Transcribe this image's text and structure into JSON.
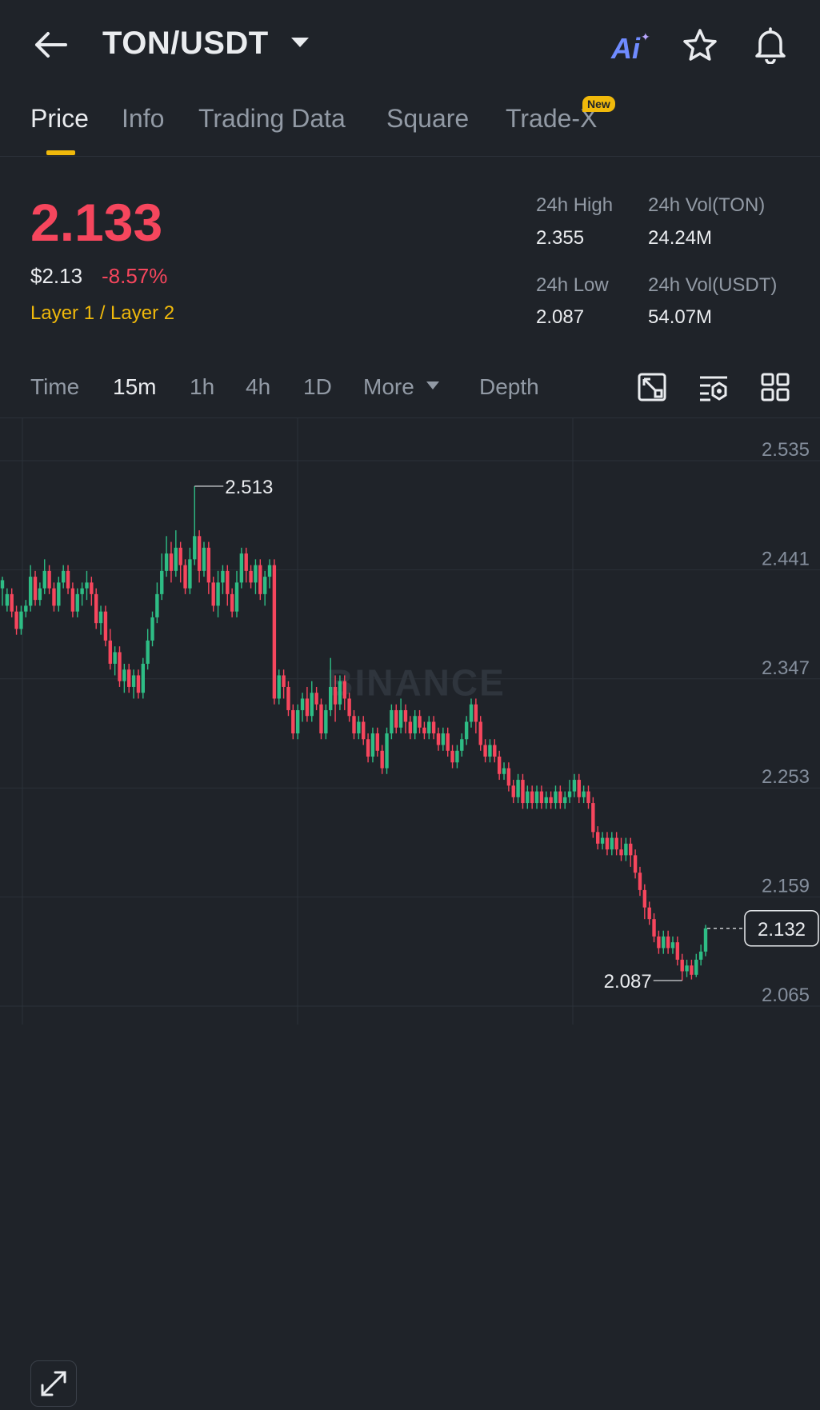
{
  "header": {
    "pair": "TON/USDT",
    "ai_label": "Ai",
    "icons": [
      "back-arrow-icon",
      "caret-down-icon",
      "star-icon",
      "bell-icon"
    ]
  },
  "tabs": [
    {
      "label": "Price",
      "active": true
    },
    {
      "label": "Info",
      "active": false
    },
    {
      "label": "Trading Data",
      "active": false
    },
    {
      "label": "Square",
      "active": false
    },
    {
      "label": "Trade-X",
      "active": false,
      "badge": "New"
    }
  ],
  "ticker": {
    "last_price": "2.133",
    "usd_price": "$2.13",
    "change_pct": "-8.57%",
    "category": "Layer 1 / Layer 2",
    "high_label": "24h High",
    "high": "2.355",
    "low_label": "24h Low",
    "low": "2.087",
    "vol_ton_label": "24h Vol(TON)",
    "vol_ton": "24.24M",
    "vol_usdt_label": "24h Vol(USDT)",
    "vol_usdt": "54.07M"
  },
  "timeframes": {
    "items": [
      "Time",
      "15m",
      "1h",
      "4h",
      "1D",
      "More",
      "Depth"
    ],
    "active": "15m"
  },
  "colors": {
    "up": "#2ebd85",
    "down": "#f6465d",
    "accent": "#f0b90b",
    "background": "#1f2329"
  },
  "watermark": "BINANCE",
  "chart_data": {
    "type": "candlestick",
    "y_ticks": [
      2.535,
      2.441,
      2.347,
      2.253,
      2.159,
      2.065
    ],
    "ylim": [
      2.065,
      2.535
    ],
    "max_label": "2.513",
    "min_label": "2.087",
    "last_label": "2.132",
    "last_value": 2.132,
    "candles": [
      [
        2.425,
        2.432,
        2.41,
        2.435
      ],
      [
        2.41,
        2.42,
        2.405,
        2.425
      ],
      [
        2.42,
        2.405,
        2.4,
        2.425
      ],
      [
        2.405,
        2.39,
        2.385,
        2.41
      ],
      [
        2.39,
        2.405,
        2.385,
        2.41
      ],
      [
        2.405,
        2.41,
        2.4,
        2.415
      ],
      [
        2.41,
        2.435,
        2.405,
        2.445
      ],
      [
        2.435,
        2.415,
        2.41,
        2.44
      ],
      [
        2.415,
        2.425,
        2.41,
        2.43
      ],
      [
        2.425,
        2.44,
        2.42,
        2.45
      ],
      [
        2.44,
        2.425,
        2.42,
        2.445
      ],
      [
        2.425,
        2.41,
        2.405,
        2.43
      ],
      [
        2.41,
        2.43,
        2.405,
        2.435
      ],
      [
        2.43,
        2.44,
        2.425,
        2.445
      ],
      [
        2.44,
        2.425,
        2.42,
        2.445
      ],
      [
        2.425,
        2.405,
        2.4,
        2.43
      ],
      [
        2.405,
        2.42,
        2.4,
        2.425
      ],
      [
        2.42,
        2.425,
        2.41,
        2.43
      ],
      [
        2.425,
        2.43,
        2.415,
        2.44
      ],
      [
        2.43,
        2.42,
        2.41,
        2.435
      ],
      [
        2.42,
        2.395,
        2.39,
        2.425
      ],
      [
        2.395,
        2.405,
        2.385,
        2.41
      ],
      [
        2.405,
        2.38,
        2.375,
        2.41
      ],
      [
        2.38,
        2.36,
        2.355,
        2.39
      ],
      [
        2.36,
        2.37,
        2.35,
        2.375
      ],
      [
        2.37,
        2.345,
        2.34,
        2.375
      ],
      [
        2.345,
        2.355,
        2.335,
        2.36
      ],
      [
        2.355,
        2.34,
        2.335,
        2.36
      ],
      [
        2.34,
        2.35,
        2.33,
        2.355
      ],
      [
        2.35,
        2.335,
        2.33,
        2.355
      ],
      [
        2.335,
        2.36,
        2.33,
        2.365
      ],
      [
        2.36,
        2.38,
        2.355,
        2.39
      ],
      [
        2.38,
        2.4,
        2.375,
        2.405
      ],
      [
        2.4,
        2.42,
        2.395,
        2.43
      ],
      [
        2.42,
        2.44,
        2.415,
        2.455
      ],
      [
        2.44,
        2.455,
        2.435,
        2.47
      ],
      [
        2.455,
        2.44,
        2.43,
        2.465
      ],
      [
        2.44,
        2.46,
        2.435,
        2.475
      ],
      [
        2.46,
        2.445,
        2.43,
        2.465
      ],
      [
        2.445,
        2.425,
        2.42,
        2.45
      ],
      [
        2.425,
        2.45,
        2.42,
        2.46
      ],
      [
        2.45,
        2.47,
        2.445,
        2.513
      ],
      [
        2.47,
        2.44,
        2.43,
        2.475
      ],
      [
        2.44,
        2.46,
        2.435,
        2.465
      ],
      [
        2.46,
        2.43,
        2.42,
        2.465
      ],
      [
        2.43,
        2.41,
        2.405,
        2.435
      ],
      [
        2.41,
        2.43,
        2.4,
        2.44
      ],
      [
        2.43,
        2.44,
        2.42,
        2.445
      ],
      [
        2.44,
        2.42,
        2.41,
        2.445
      ],
      [
        2.42,
        2.405,
        2.4,
        2.425
      ],
      [
        2.405,
        2.43,
        2.4,
        2.44
      ],
      [
        2.43,
        2.455,
        2.425,
        2.46
      ],
      [
        2.455,
        2.44,
        2.43,
        2.46
      ],
      [
        2.44,
        2.43,
        2.425,
        2.445
      ],
      [
        2.43,
        2.445,
        2.42,
        2.45
      ],
      [
        2.445,
        2.42,
        2.415,
        2.45
      ],
      [
        2.42,
        2.435,
        2.41,
        2.44
      ],
      [
        2.435,
        2.445,
        2.425,
        2.45
      ],
      [
        2.445,
        2.33,
        2.325,
        2.45
      ],
      [
        2.33,
        2.35,
        2.325,
        2.355
      ],
      [
        2.35,
        2.34,
        2.33,
        2.355
      ],
      [
        2.34,
        2.32,
        2.315,
        2.345
      ],
      [
        2.32,
        2.3,
        2.295,
        2.325
      ],
      [
        2.3,
        2.32,
        2.295,
        2.325
      ],
      [
        2.32,
        2.33,
        2.31,
        2.335
      ],
      [
        2.33,
        2.315,
        2.31,
        2.34
      ],
      [
        2.315,
        2.335,
        2.31,
        2.345
      ],
      [
        2.335,
        2.325,
        2.32,
        2.34
      ],
      [
        2.325,
        2.3,
        2.295,
        2.33
      ],
      [
        2.3,
        2.32,
        2.295,
        2.325
      ],
      [
        2.32,
        2.34,
        2.315,
        2.365
      ],
      [
        2.34,
        2.325,
        2.31,
        2.35
      ],
      [
        2.325,
        2.345,
        2.32,
        2.35
      ],
      [
        2.345,
        2.33,
        2.32,
        2.35
      ],
      [
        2.33,
        2.315,
        2.31,
        2.335
      ],
      [
        2.315,
        2.3,
        2.295,
        2.32
      ],
      [
        2.3,
        2.31,
        2.295,
        2.315
      ],
      [
        2.31,
        2.295,
        2.29,
        2.315
      ],
      [
        2.295,
        2.28,
        2.275,
        2.3
      ],
      [
        2.28,
        2.3,
        2.275,
        2.305
      ],
      [
        2.3,
        2.285,
        2.28,
        2.305
      ],
      [
        2.285,
        2.27,
        2.265,
        2.29
      ],
      [
        2.27,
        2.3,
        2.265,
        2.305
      ],
      [
        2.3,
        2.32,
        2.295,
        2.325
      ],
      [
        2.32,
        2.305,
        2.3,
        2.325
      ],
      [
        2.305,
        2.32,
        2.3,
        2.33
      ],
      [
        2.32,
        2.31,
        2.3,
        2.325
      ],
      [
        2.31,
        2.3,
        2.295,
        2.315
      ],
      [
        2.3,
        2.315,
        2.295,
        2.32
      ],
      [
        2.315,
        2.305,
        2.3,
        2.32
      ],
      [
        2.305,
        2.3,
        2.295,
        2.31
      ],
      [
        2.3,
        2.31,
        2.295,
        2.315
      ],
      [
        2.31,
        2.3,
        2.295,
        2.315
      ],
      [
        2.3,
        2.29,
        2.285,
        2.305
      ],
      [
        2.29,
        2.3,
        2.285,
        2.305
      ],
      [
        2.3,
        2.285,
        2.28,
        2.305
      ],
      [
        2.285,
        2.275,
        2.27,
        2.29
      ],
      [
        2.275,
        2.285,
        2.27,
        2.29
      ],
      [
        2.285,
        2.295,
        2.28,
        2.3
      ],
      [
        2.295,
        2.31,
        2.29,
        2.315
      ],
      [
        2.31,
        2.325,
        2.305,
        2.33
      ],
      [
        2.325,
        2.31,
        2.3,
        2.33
      ],
      [
        2.31,
        2.29,
        2.285,
        2.315
      ],
      [
        2.29,
        2.28,
        2.275,
        2.295
      ],
      [
        2.28,
        2.29,
        2.275,
        2.295
      ],
      [
        2.29,
        2.28,
        2.275,
        2.295
      ],
      [
        2.28,
        2.265,
        2.26,
        2.285
      ],
      [
        2.265,
        2.27,
        2.26,
        2.275
      ],
      [
        2.27,
        2.255,
        2.25,
        2.275
      ],
      [
        2.255,
        2.245,
        2.24,
        2.26
      ],
      [
        2.245,
        2.26,
        2.24,
        2.265
      ],
      [
        2.26,
        2.24,
        2.235,
        2.265
      ],
      [
        2.24,
        2.25,
        2.235,
        2.255
      ],
      [
        2.25,
        2.24,
        2.235,
        2.255
      ],
      [
        2.24,
        2.25,
        2.235,
        2.255
      ],
      [
        2.25,
        2.24,
        2.235,
        2.255
      ],
      [
        2.24,
        2.245,
        2.235,
        2.25
      ],
      [
        2.245,
        2.24,
        2.235,
        2.25
      ],
      [
        2.24,
        2.25,
        2.235,
        2.255
      ],
      [
        2.25,
        2.24,
        2.235,
        2.255
      ],
      [
        2.24,
        2.245,
        2.235,
        2.25
      ],
      [
        2.245,
        2.25,
        2.24,
        2.26
      ],
      [
        2.25,
        2.26,
        2.245,
        2.265
      ],
      [
        2.26,
        2.245,
        2.24,
        2.265
      ],
      [
        2.245,
        2.25,
        2.24,
        2.255
      ],
      [
        2.25,
        2.24,
        2.235,
        2.255
      ],
      [
        2.24,
        2.215,
        2.21,
        2.245
      ],
      [
        2.215,
        2.205,
        2.2,
        2.22
      ],
      [
        2.205,
        2.21,
        2.2,
        2.215
      ],
      [
        2.21,
        2.2,
        2.195,
        2.215
      ],
      [
        2.2,
        2.21,
        2.195,
        2.215
      ],
      [
        2.21,
        2.2,
        2.195,
        2.215
      ],
      [
        2.2,
        2.195,
        2.19,
        2.21
      ],
      [
        2.195,
        2.205,
        2.19,
        2.21
      ],
      [
        2.205,
        2.195,
        2.185,
        2.21
      ],
      [
        2.195,
        2.18,
        2.175,
        2.2
      ],
      [
        2.18,
        2.165,
        2.16,
        2.185
      ],
      [
        2.165,
        2.15,
        2.14,
        2.17
      ],
      [
        2.15,
        2.14,
        2.135,
        2.155
      ],
      [
        2.14,
        2.125,
        2.12,
        2.145
      ],
      [
        2.125,
        2.115,
        2.11,
        2.13
      ],
      [
        2.115,
        2.125,
        2.11,
        2.13
      ],
      [
        2.125,
        2.115,
        2.11,
        2.13
      ],
      [
        2.115,
        2.12,
        2.11,
        2.125
      ],
      [
        2.12,
        2.105,
        2.1,
        2.125
      ],
      [
        2.105,
        2.095,
        2.087,
        2.11
      ],
      [
        2.095,
        2.1,
        2.09,
        2.105
      ],
      [
        2.1,
        2.092,
        2.088,
        2.105
      ],
      [
        2.092,
        2.105,
        2.09,
        2.11
      ],
      [
        2.105,
        2.112,
        2.1,
        2.118
      ],
      [
        2.112,
        2.132,
        2.108,
        2.135
      ]
    ]
  }
}
